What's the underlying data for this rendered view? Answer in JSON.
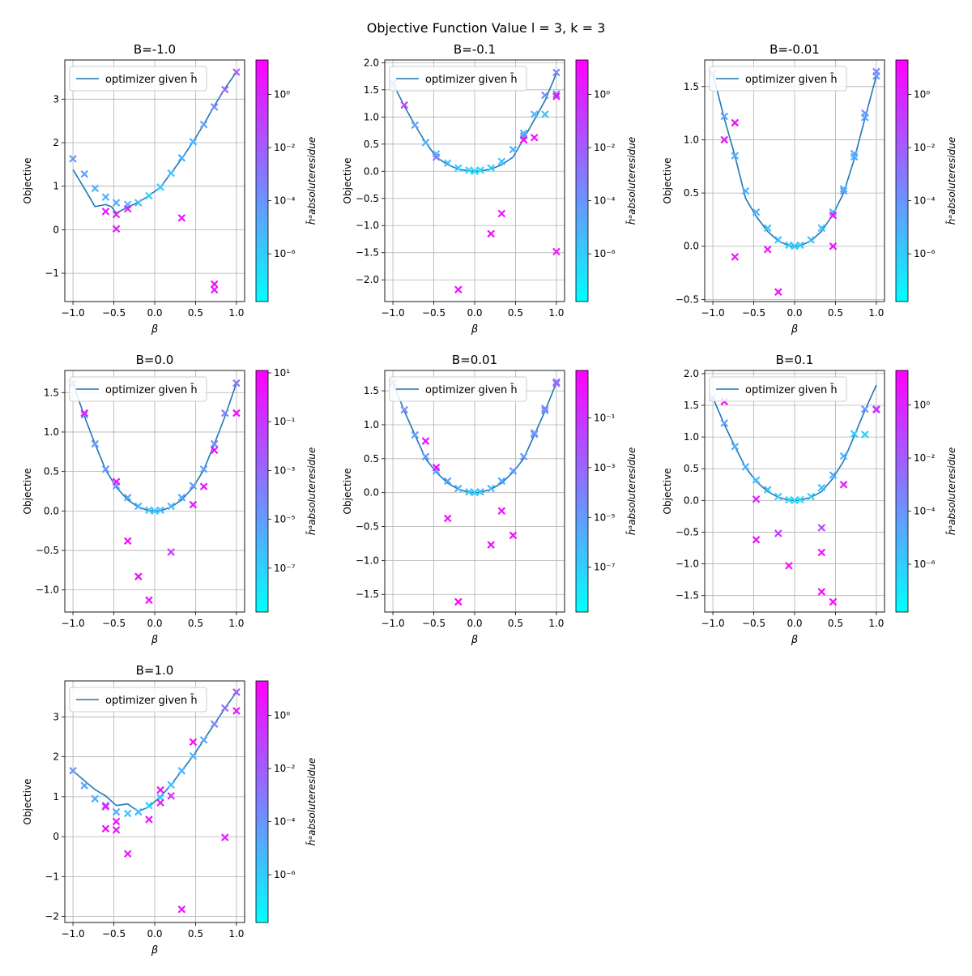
{
  "figure": {
    "title": "Objective Function Value l = 3, k = 3"
  },
  "common": {
    "legend_label": "optimizer given h̄",
    "xlabel": "β",
    "ylabel": "Objective",
    "colorbar_label": "h̄ᵃabsoluteresidue",
    "xticks": [
      -1.0,
      -0.5,
      0.0,
      0.5,
      1.0
    ],
    "xtick_labels": [
      "−1.0",
      "−0.5",
      "0.0",
      "0.5",
      "1.0"
    ],
    "line_color": "#1f77b4",
    "colormap": "cool",
    "colormap_stops": [
      "#00ffff",
      "#ff00ff"
    ],
    "legend_loc": "upper left",
    "grid": true
  },
  "chart_data": [
    {
      "type": "line+scatter",
      "title": "B=-1.0",
      "xlim": [
        -1.1,
        1.1
      ],
      "ylim": [
        -1.65,
        3.9
      ],
      "yticks": [
        -1,
        0,
        1,
        2,
        3
      ],
      "ytick_labels": [
        "−1",
        "0",
        "1",
        "2",
        "3"
      ],
      "colorbar": {
        "log_range": [
          -7.8,
          1.3
        ],
        "ticks": [
          -6,
          -4,
          -2,
          0
        ]
      },
      "line": {
        "x": [
          -1.0,
          -0.86,
          -0.73,
          -0.6,
          -0.53,
          -0.47,
          -0.33,
          -0.2,
          -0.07,
          0.07,
          0.2,
          0.33,
          0.47,
          0.6,
          0.73,
          0.86,
          1.0
        ],
        "y": [
          1.38,
          0.95,
          0.53,
          0.58,
          0.53,
          0.38,
          0.52,
          0.63,
          0.78,
          0.98,
          1.3,
          1.63,
          2.02,
          2.42,
          2.85,
          3.25,
          3.62
        ]
      },
      "scatter": {
        "x": [
          -1.0,
          -0.86,
          -0.73,
          -0.6,
          -0.6,
          -0.47,
          -0.47,
          -0.47,
          -0.33,
          -0.33,
          -0.2,
          -0.07,
          0.07,
          0.2,
          0.33,
          0.33,
          0.47,
          0.6,
          0.73,
          0.73,
          0.73,
          0.86,
          1.0
        ],
        "y": [
          1.63,
          1.28,
          0.95,
          0.75,
          0.42,
          0.62,
          0.35,
          0.02,
          0.58,
          0.48,
          0.62,
          0.78,
          0.98,
          1.3,
          1.65,
          0.27,
          2.02,
          2.42,
          2.82,
          -1.25,
          -1.38,
          3.22,
          3.62
        ],
        "log_residue": [
          -4.0,
          -4.5,
          -5.0,
          -5.0,
          0.5,
          -5.0,
          0.0,
          0.2,
          -5.5,
          0.5,
          -5.5,
          -6.0,
          -6.0,
          -5.5,
          -5.0,
          0.8,
          -5.0,
          -4.5,
          -3.5,
          0.8,
          0.6,
          -2.5,
          -2.0
        ]
      }
    },
    {
      "type": "line+scatter",
      "title": "B=-0.1",
      "xlim": [
        -1.1,
        1.1
      ],
      "ylim": [
        -2.4,
        2.05
      ],
      "yticks": [
        -2.0,
        -1.5,
        -1.0,
        -0.5,
        0.0,
        0.5,
        1.0,
        1.5,
        2.0
      ],
      "ytick_labels": [
        "−2.0",
        "−1.5",
        "−1.0",
        "−0.5",
        "0.0",
        "0.5",
        "1.0",
        "1.5",
        "2.0"
      ],
      "colorbar": {
        "log_range": [
          -7.8,
          1.3
        ],
        "ticks": [
          -6,
          -4,
          -2,
          0
        ]
      },
      "line": {
        "x": [
          -1.0,
          -0.86,
          -0.73,
          -0.6,
          -0.47,
          -0.33,
          -0.2,
          -0.07,
          0.0,
          0.07,
          0.2,
          0.33,
          0.47,
          0.6,
          0.73,
          0.86,
          1.0
        ],
        "y": [
          1.62,
          1.2,
          0.85,
          0.53,
          0.26,
          0.12,
          0.04,
          0.005,
          0.0,
          0.005,
          0.04,
          0.12,
          0.26,
          0.6,
          0.95,
          1.3,
          1.8
        ]
      },
      "scatter": {
        "x": [
          -1.0,
          -0.86,
          -0.73,
          -0.6,
          -0.47,
          -0.47,
          -0.33,
          -0.2,
          -0.2,
          -0.07,
          0.0,
          0.07,
          0.2,
          0.2,
          0.33,
          0.33,
          0.47,
          0.6,
          0.6,
          0.6,
          0.73,
          0.73,
          0.86,
          0.86,
          1.0,
          1.0,
          1.0,
          1.0
        ],
        "y": [
          1.62,
          1.22,
          0.85,
          0.53,
          0.32,
          0.26,
          0.15,
          0.06,
          -2.18,
          0.02,
          0.0,
          0.02,
          0.06,
          -1.15,
          0.18,
          -0.78,
          0.4,
          0.7,
          0.65,
          0.58,
          1.05,
          0.62,
          1.4,
          1.05,
          1.82,
          1.42,
          1.38,
          -1.48
        ],
        "log_residue": [
          -4.0,
          -1.0,
          -4.5,
          -5.0,
          -5.5,
          -3.0,
          -5.5,
          -6.0,
          0.8,
          -6.5,
          -6.5,
          -6.5,
          -6.0,
          0.6,
          -5.5,
          0.5,
          -5.0,
          -5.0,
          -4.5,
          1.0,
          -5.5,
          0.8,
          -4.0,
          -5.5,
          -3.5,
          -3.0,
          1.0,
          0.5
        ]
      }
    },
    {
      "type": "line+scatter",
      "title": "B=-0.01",
      "xlim": [
        -1.1,
        1.1
      ],
      "ylim": [
        -0.52,
        1.75
      ],
      "yticks": [
        -0.5,
        0.0,
        0.5,
        1.0,
        1.5
      ],
      "ytick_labels": [
        "−0.5",
        "0.0",
        "0.5",
        "1.0",
        "1.5"
      ],
      "colorbar": {
        "log_range": [
          -7.8,
          1.3
        ],
        "ticks": [
          -6,
          -4,
          -2,
          0
        ]
      },
      "line": {
        "x": [
          -1.0,
          -0.86,
          -0.73,
          -0.6,
          -0.47,
          -0.33,
          -0.2,
          -0.07,
          0.0,
          0.07,
          0.2,
          0.33,
          0.47,
          0.6,
          0.73,
          0.86,
          1.0
        ],
        "y": [
          1.62,
          1.2,
          0.85,
          0.45,
          0.28,
          0.14,
          0.05,
          0.005,
          0.0,
          0.005,
          0.05,
          0.14,
          0.3,
          0.5,
          0.82,
          1.2,
          1.6
        ]
      },
      "scatter": {
        "x": [
          -1.0,
          -0.86,
          -0.86,
          -0.73,
          -0.73,
          -0.73,
          -0.6,
          -0.47,
          -0.33,
          -0.33,
          -0.2,
          -0.2,
          -0.07,
          0.0,
          0.07,
          0.2,
          0.33,
          0.47,
          0.47,
          0.47,
          0.6,
          0.6,
          0.73,
          0.73,
          0.86,
          0.86,
          1.0,
          1.0
        ],
        "y": [
          1.62,
          1.22,
          1.0,
          0.85,
          1.16,
          -0.1,
          0.52,
          0.32,
          0.17,
          -0.03,
          0.06,
          -0.43,
          0.01,
          0.0,
          0.01,
          0.06,
          0.17,
          0.32,
          0.29,
          0.0,
          0.54,
          0.52,
          0.87,
          0.84,
          1.25,
          1.21,
          1.64,
          1.6
        ],
        "log_residue": [
          -4.0,
          -4.5,
          0.5,
          -5.0,
          0.9,
          0.8,
          -5.0,
          -5.0,
          -5.5,
          0.5,
          -5.5,
          0.8,
          -6.0,
          -6.0,
          -6.0,
          -5.5,
          -5.5,
          -5.0,
          0.5,
          0.8,
          -5.0,
          -4.5,
          -4.5,
          -5.0,
          -4.0,
          -4.5,
          -3.5,
          -4.0
        ]
      }
    },
    {
      "type": "line+scatter",
      "title": "B=0.0",
      "xlim": [
        -1.1,
        1.1
      ],
      "ylim": [
        -1.28,
        1.78
      ],
      "yticks": [
        -1.0,
        -0.5,
        0.0,
        0.5,
        1.0,
        1.5
      ],
      "ytick_labels": [
        "−1.0",
        "−0.5",
        "0.0",
        "0.5",
        "1.0",
        "1.5"
      ],
      "colorbar": {
        "log_range": [
          -8.8,
          1.1
        ],
        "ticks": [
          -7,
          -5,
          -3,
          -1,
          1
        ]
      },
      "line": {
        "x": [
          -1.0,
          -0.86,
          -0.73,
          -0.6,
          -0.47,
          -0.33,
          -0.2,
          -0.07,
          0.0,
          0.07,
          0.2,
          0.33,
          0.47,
          0.6,
          0.73,
          0.86,
          1.0
        ],
        "y": [
          1.62,
          1.2,
          0.85,
          0.52,
          0.3,
          0.14,
          0.05,
          0.005,
          0.0,
          0.005,
          0.05,
          0.14,
          0.3,
          0.52,
          0.85,
          1.2,
          1.62
        ]
      },
      "scatter": {
        "x": [
          -1.0,
          -0.86,
          -0.86,
          -0.73,
          -0.6,
          -0.47,
          -0.47,
          -0.33,
          -0.33,
          -0.2,
          -0.2,
          -0.07,
          -0.07,
          0.0,
          0.07,
          0.2,
          0.2,
          0.33,
          0.47,
          0.47,
          0.6,
          0.6,
          0.73,
          0.73,
          0.86,
          1.0,
          1.0
        ],
        "y": [
          1.62,
          1.22,
          1.24,
          0.85,
          0.53,
          0.32,
          0.37,
          0.17,
          -0.38,
          0.06,
          -0.83,
          0.01,
          -1.13,
          0.0,
          0.01,
          0.06,
          -0.52,
          0.17,
          0.32,
          0.08,
          0.53,
          0.31,
          0.85,
          0.77,
          1.24,
          1.62,
          1.24
        ],
        "log_residue": [
          -4.0,
          -4.5,
          0.3,
          -5.0,
          -5.0,
          -5.5,
          0.7,
          -5.5,
          0.9,
          -6.0,
          0.9,
          -6.5,
          0.9,
          -7.0,
          -6.5,
          -6.0,
          -1.0,
          -5.5,
          -5.0,
          0.0,
          -5.0,
          0.5,
          -4.5,
          0.8,
          -4.0,
          -3.5,
          0.6
        ]
      }
    },
    {
      "type": "line+scatter",
      "title": "B=0.01",
      "xlim": [
        -1.1,
        1.1
      ],
      "ylim": [
        -1.76,
        1.8
      ],
      "yticks": [
        -1.5,
        -1.0,
        -0.5,
        0.0,
        0.5,
        1.0,
        1.5
      ],
      "ytick_labels": [
        "−1.5",
        "−1.0",
        "−0.5",
        "0.0",
        "0.5",
        "1.0",
        "1.5"
      ],
      "colorbar": {
        "log_range": [
          -8.8,
          0.9
        ],
        "ticks": [
          -7,
          -5,
          -3,
          -1
        ]
      },
      "line": {
        "x": [
          -1.0,
          -0.86,
          -0.73,
          -0.6,
          -0.47,
          -0.33,
          -0.2,
          -0.07,
          0.0,
          0.07,
          0.2,
          0.33,
          0.47,
          0.6,
          0.73,
          0.86,
          1.0
        ],
        "y": [
          1.62,
          1.2,
          0.85,
          0.5,
          0.3,
          0.14,
          0.05,
          0.005,
          0.0,
          0.005,
          0.05,
          0.14,
          0.3,
          0.5,
          0.85,
          1.2,
          1.62
        ]
      },
      "scatter": {
        "x": [
          -1.0,
          -0.86,
          -0.73,
          -0.6,
          -0.6,
          -0.47,
          -0.47,
          -0.33,
          -0.33,
          -0.2,
          -0.2,
          -0.07,
          0.0,
          0.07,
          0.2,
          0.2,
          0.33,
          0.33,
          0.47,
          0.47,
          0.6,
          0.73,
          0.73,
          0.86,
          0.86,
          1.0,
          1.0
        ],
        "y": [
          1.62,
          1.22,
          0.85,
          0.53,
          0.76,
          0.32,
          0.37,
          0.17,
          -0.38,
          0.06,
          -1.61,
          0.01,
          0.0,
          0.01,
          0.06,
          -0.77,
          0.17,
          -0.27,
          0.32,
          -0.63,
          0.53,
          0.86,
          0.88,
          1.24,
          1.21,
          1.63,
          1.61
        ],
        "log_residue": [
          -4.0,
          -4.5,
          -5.0,
          -5.0,
          0.5,
          -5.5,
          0.2,
          -5.5,
          0.5,
          -6.0,
          0.6,
          -6.5,
          -7.0,
          -6.5,
          -6.0,
          0.5,
          -5.5,
          0.3,
          -5.0,
          0.4,
          -5.0,
          -4.5,
          -5.0,
          -4.0,
          -4.5,
          -3.5,
          -3.0
        ]
      }
    },
    {
      "type": "line+scatter",
      "title": "B=0.1",
      "xlim": [
        -1.1,
        1.1
      ],
      "ylim": [
        -1.76,
        2.05
      ],
      "yticks": [
        -1.5,
        -1.0,
        -0.5,
        0.0,
        0.5,
        1.0,
        1.5,
        2.0
      ],
      "ytick_labels": [
        "−1.5",
        "−1.0",
        "−0.5",
        "0.0",
        "0.5",
        "1.0",
        "1.5",
        "2.0"
      ],
      "colorbar": {
        "log_range": [
          -7.8,
          1.3
        ],
        "ticks": [
          -6,
          -4,
          -2,
          0
        ]
      },
      "line": {
        "x": [
          -1.0,
          -0.86,
          -0.73,
          -0.6,
          -0.47,
          -0.33,
          -0.2,
          -0.07,
          0.0,
          0.07,
          0.2,
          0.33,
          0.47,
          0.6,
          0.73,
          0.86,
          1.0
        ],
        "y": [
          1.62,
          1.2,
          0.85,
          0.52,
          0.3,
          0.14,
          0.05,
          0.005,
          0.0,
          0.005,
          0.05,
          0.14,
          0.35,
          0.62,
          1.02,
          1.42,
          1.82
        ]
      },
      "scatter": {
        "x": [
          -1.0,
          -0.86,
          -0.86,
          -0.73,
          -0.6,
          -0.47,
          -0.47,
          -0.47,
          -0.33,
          -0.2,
          -0.2,
          -0.07,
          -0.07,
          0.0,
          0.07,
          0.2,
          0.33,
          0.33,
          0.33,
          0.33,
          0.47,
          0.47,
          0.6,
          0.6,
          0.73,
          0.86,
          0.86,
          0.86,
          1.0,
          1.0
        ],
        "y": [
          1.62,
          1.22,
          1.56,
          0.85,
          0.53,
          0.32,
          0.02,
          -0.62,
          0.17,
          0.06,
          -0.52,
          0.01,
          -1.03,
          0.0,
          0.01,
          0.06,
          0.2,
          -0.43,
          -0.82,
          -1.44,
          0.4,
          -1.6,
          0.7,
          0.25,
          1.05,
          1.44,
          1.04,
          1.04,
          1.44,
          1.43
        ],
        "log_residue": [
          -4.0,
          -4.5,
          0.8,
          -5.0,
          -5.0,
          -5.5,
          0.2,
          0.5,
          -5.5,
          -6.0,
          -0.5,
          -6.5,
          0.9,
          -6.5,
          -6.5,
          -6.0,
          -5.5,
          -1.5,
          0.6,
          0.8,
          -5.0,
          0.9,
          -5.0,
          0.3,
          -6.0,
          -4.0,
          -7.5,
          -6.0,
          -2.0,
          -0.5
        ]
      }
    },
    {
      "type": "line+scatter",
      "title": "B=1.0",
      "xlim": [
        -1.1,
        1.1
      ],
      "ylim": [
        -2.15,
        3.9
      ],
      "yticks": [
        -2,
        -1,
        0,
        1,
        2,
        3
      ],
      "ytick_labels": [
        "−2",
        "−1",
        "0",
        "1",
        "2",
        "3"
      ],
      "colorbar": {
        "log_range": [
          -7.8,
          1.3
        ],
        "ticks": [
          -6,
          -4,
          -2,
          0
        ]
      },
      "line": {
        "x": [
          -1.0,
          -0.86,
          -0.73,
          -0.6,
          -0.47,
          -0.33,
          -0.2,
          -0.07,
          0.07,
          0.2,
          0.33,
          0.47,
          0.6,
          0.73,
          0.86,
          1.0
        ],
        "y": [
          1.65,
          1.4,
          1.18,
          1.02,
          0.78,
          0.82,
          0.63,
          0.75,
          1.0,
          1.3,
          1.65,
          2.02,
          2.42,
          2.82,
          3.22,
          3.62
        ]
      },
      "scatter": {
        "x": [
          -1.0,
          -0.86,
          -0.73,
          -0.6,
          -0.6,
          -0.6,
          -0.47,
          -0.47,
          -0.47,
          -0.33,
          -0.33,
          -0.2,
          -0.07,
          -0.07,
          0.07,
          0.07,
          0.07,
          0.2,
          0.2,
          0.33,
          0.33,
          0.47,
          0.47,
          0.6,
          0.73,
          0.86,
          0.86,
          1.0,
          1.0
        ],
        "y": [
          1.65,
          1.28,
          0.95,
          0.78,
          0.75,
          0.2,
          0.62,
          0.38,
          0.17,
          0.58,
          -0.43,
          0.62,
          0.78,
          0.43,
          0.98,
          1.17,
          0.85,
          1.3,
          1.02,
          1.65,
          -1.82,
          2.02,
          2.37,
          2.42,
          2.82,
          3.22,
          -0.02,
          3.62,
          3.15
        ],
        "log_residue": [
          -4.0,
          -4.5,
          -5.0,
          -3.0,
          0.3,
          0.8,
          -5.0,
          0.5,
          0.6,
          -5.5,
          0.5,
          -5.5,
          -6.0,
          0.6,
          -6.0,
          0.8,
          0.5,
          -5.5,
          -0.2,
          -5.0,
          0.7,
          -5.0,
          1.0,
          -4.5,
          -3.5,
          -2.5,
          0.0,
          -2.0,
          0.3
        ]
      }
    }
  ]
}
